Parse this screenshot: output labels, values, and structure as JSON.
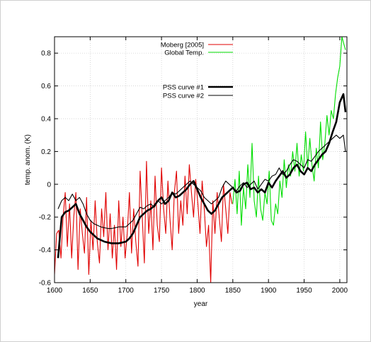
{
  "chart_data": {
    "type": "line",
    "title": "",
    "xlabel": "year",
    "ylabel": "temp. anom.  (K)",
    "xlim": [
      1600,
      2010
    ],
    "ylim": [
      -0.6,
      0.9
    ],
    "x_ticks": [
      1600,
      1650,
      1700,
      1750,
      1800,
      1850,
      1900,
      1950,
      2000
    ],
    "y_ticks": [
      -0.6,
      -0.4,
      -0.2,
      0,
      0.2,
      0.4,
      0.6,
      0.8
    ],
    "x_tick_labels": [
      "1600",
      "1650",
      "1700",
      "1750",
      "1800",
      "1850",
      "1900",
      "1950",
      "2000"
    ],
    "y_tick_labels": [
      "-0.6",
      "-0.4",
      "-0.2",
      "0",
      "0.2",
      "0.4",
      "0.6",
      "0.8"
    ],
    "grid": true,
    "legend_position": "top-center",
    "legend": [
      "Moberg [2005]",
      "Global Temp.",
      "PSS curve #1",
      "PSS curve #2"
    ],
    "series": [
      {
        "name": "Moberg [2005]",
        "color": "#e00000",
        "style": "thin",
        "x": [
          1600,
          1603,
          1606,
          1609,
          1612,
          1615,
          1618,
          1621,
          1624,
          1627,
          1630,
          1633,
          1636,
          1639,
          1642,
          1645,
          1648,
          1651,
          1654,
          1657,
          1660,
          1663,
          1666,
          1669,
          1672,
          1675,
          1678,
          1681,
          1684,
          1687,
          1690,
          1693,
          1696,
          1699,
          1702,
          1705,
          1708,
          1711,
          1714,
          1717,
          1720,
          1723,
          1726,
          1729,
          1732,
          1735,
          1738,
          1741,
          1744,
          1747,
          1750,
          1753,
          1756,
          1759,
          1762,
          1765,
          1768,
          1771,
          1774,
          1777,
          1780,
          1783,
          1786,
          1789,
          1792,
          1795,
          1798,
          1801,
          1804,
          1807,
          1810,
          1813,
          1816,
          1819,
          1822,
          1825,
          1828,
          1831,
          1834,
          1837,
          1840,
          1843,
          1846,
          1849
        ],
        "y": [
          -0.55,
          -0.3,
          -0.28,
          -0.45,
          -0.2,
          -0.05,
          -0.38,
          -0.12,
          -0.45,
          -0.2,
          -0.05,
          -0.52,
          -0.15,
          -0.3,
          -0.42,
          -0.08,
          -0.55,
          -0.22,
          -0.4,
          -0.1,
          -0.35,
          -0.48,
          -0.15,
          -0.32,
          -0.05,
          -0.4,
          -0.18,
          -0.45,
          -0.25,
          -0.52,
          -0.1,
          -0.38,
          -0.2,
          -0.45,
          -0.3,
          -0.05,
          -0.42,
          -0.15,
          -0.35,
          -0.5,
          0.08,
          -0.2,
          -0.48,
          0.14,
          -0.3,
          -0.1,
          -0.4,
          0.05,
          -0.25,
          -0.35,
          0.1,
          -0.15,
          -0.3,
          0.02,
          -0.22,
          -0.4,
          -0.05,
          0.08,
          -0.3,
          -0.1,
          -0.25,
          0.05,
          -0.18,
          0.12,
          -0.05,
          -0.2,
          0.03,
          -0.12,
          -0.3,
          0.02,
          -0.15,
          -0.38,
          -0.25,
          -0.6,
          -0.1,
          -0.3,
          -0.05,
          -0.2,
          -0.35,
          0.0,
          -0.15,
          -0.3,
          -0.05,
          -0.12
        ]
      },
      {
        "name": "Global Temp.",
        "color": "#00dd00",
        "style": "thin",
        "x": [
          1850,
          1853,
          1856,
          1859,
          1862,
          1865,
          1868,
          1871,
          1874,
          1877,
          1880,
          1883,
          1886,
          1889,
          1892,
          1895,
          1898,
          1901,
          1904,
          1907,
          1910,
          1913,
          1916,
          1919,
          1922,
          1925,
          1928,
          1931,
          1934,
          1937,
          1940,
          1943,
          1946,
          1949,
          1952,
          1955,
          1958,
          1961,
          1964,
          1967,
          1970,
          1973,
          1976,
          1979,
          1982,
          1985,
          1988,
          1991,
          1994,
          1997,
          2000,
          2003,
          2006,
          2008
        ],
        "y": [
          -0.12,
          0.03,
          -0.18,
          0.08,
          -0.25,
          -0.02,
          -0.15,
          0.12,
          -0.08,
          0.25,
          -0.1,
          -0.2,
          0.05,
          -0.15,
          -0.22,
          -0.05,
          -0.12,
          0.08,
          -0.22,
          -0.25,
          -0.12,
          -0.18,
          0.02,
          -0.08,
          0.15,
          -0.02,
          0.12,
          0.05,
          0.2,
          0.08,
          0.25,
          0.05,
          0.18,
          0.08,
          0.32,
          0.1,
          0.28,
          0.12,
          0.02,
          0.22,
          0.1,
          0.38,
          0.15,
          0.25,
          0.42,
          0.3,
          0.45,
          0.4,
          0.55,
          0.65,
          0.72,
          0.9,
          0.85,
          0.82
        ]
      },
      {
        "name": "PSS curve #1",
        "color": "#000000",
        "style": "thick",
        "x": [
          1605,
          1610,
          1615,
          1620,
          1625,
          1630,
          1635,
          1640,
          1645,
          1650,
          1655,
          1660,
          1665,
          1670,
          1675,
          1680,
          1685,
          1690,
          1695,
          1700,
          1705,
          1710,
          1715,
          1720,
          1725,
          1730,
          1735,
          1740,
          1745,
          1750,
          1755,
          1760,
          1765,
          1770,
          1775,
          1780,
          1785,
          1790,
          1795,
          1800,
          1805,
          1810,
          1815,
          1820,
          1825,
          1830,
          1835,
          1840,
          1845,
          1850,
          1855,
          1860,
          1865,
          1870,
          1875,
          1880,
          1885,
          1890,
          1895,
          1900,
          1905,
          1910,
          1915,
          1920,
          1925,
          1930,
          1935,
          1940,
          1945,
          1950,
          1955,
          1960,
          1965,
          1970,
          1975,
          1980,
          1985,
          1990,
          1995,
          2000,
          2005,
          2008
        ],
        "y": [
          -0.45,
          -0.2,
          -0.17,
          -0.16,
          -0.14,
          -0.12,
          -0.18,
          -0.22,
          -0.26,
          -0.29,
          -0.31,
          -0.33,
          -0.34,
          -0.35,
          -0.355,
          -0.36,
          -0.36,
          -0.36,
          -0.355,
          -0.35,
          -0.33,
          -0.3,
          -0.25,
          -0.2,
          -0.18,
          -0.16,
          -0.15,
          -0.13,
          -0.1,
          -0.08,
          -0.12,
          -0.1,
          -0.05,
          -0.08,
          -0.07,
          -0.05,
          -0.03,
          0.0,
          0.02,
          -0.03,
          -0.08,
          -0.12,
          -0.16,
          -0.18,
          -0.16,
          -0.12,
          -0.08,
          -0.06,
          -0.04,
          -0.02,
          -0.05,
          -0.04,
          0.0,
          0.01,
          -0.03,
          -0.02,
          -0.05,
          -0.03,
          -0.05,
          0.01,
          -0.02,
          0.02,
          0.05,
          0.08,
          0.04,
          0.06,
          0.1,
          0.12,
          0.08,
          0.06,
          0.1,
          0.08,
          0.12,
          0.15,
          0.18,
          0.2,
          0.25,
          0.32,
          0.38,
          0.5,
          0.55,
          0.44
        ]
      },
      {
        "name": "PSS curve #2",
        "color": "#000000",
        "style": "thin",
        "x": [
          1605,
          1610,
          1615,
          1620,
          1625,
          1630,
          1635,
          1640,
          1645,
          1650,
          1655,
          1660,
          1665,
          1670,
          1675,
          1680,
          1685,
          1690,
          1695,
          1700,
          1705,
          1710,
          1715,
          1720,
          1725,
          1730,
          1735,
          1740,
          1745,
          1750,
          1755,
          1760,
          1765,
          1770,
          1775,
          1780,
          1785,
          1790,
          1795,
          1800,
          1805,
          1810,
          1815,
          1820,
          1825,
          1830,
          1835,
          1840,
          1845,
          1850,
          1855,
          1860,
          1865,
          1870,
          1875,
          1880,
          1885,
          1890,
          1895,
          1900,
          1905,
          1910,
          1915,
          1920,
          1925,
          1930,
          1935,
          1940,
          1945,
          1950,
          1955,
          1960,
          1965,
          1970,
          1975,
          1980,
          1985,
          1990,
          1995,
          2000,
          2005,
          2008
        ],
        "y": [
          -0.15,
          -0.1,
          -0.08,
          -0.1,
          -0.06,
          -0.1,
          -0.08,
          -0.12,
          -0.18,
          -0.22,
          -0.24,
          -0.25,
          -0.26,
          -0.265,
          -0.27,
          -0.27,
          -0.265,
          -0.26,
          -0.26,
          -0.26,
          -0.24,
          -0.22,
          -0.18,
          -0.14,
          -0.15,
          -0.13,
          -0.12,
          -0.14,
          -0.1,
          -0.12,
          -0.1,
          -0.08,
          -0.05,
          -0.06,
          -0.04,
          -0.02,
          0.0,
          0.02,
          0.0,
          -0.02,
          -0.04,
          -0.08,
          -0.1,
          -0.12,
          -0.1,
          -0.08,
          -0.02,
          0.02,
          0.0,
          -0.02,
          -0.04,
          -0.01,
          0.01,
          -0.02,
          0.0,
          0.02,
          -0.03,
          0.0,
          0.03,
          0.02,
          0.05,
          0.06,
          0.1,
          0.06,
          0.08,
          0.12,
          0.15,
          0.14,
          0.12,
          0.1,
          0.15,
          0.14,
          0.17,
          0.2,
          0.22,
          0.24,
          0.26,
          0.28,
          0.3,
          0.28,
          0.3,
          0.2
        ]
      }
    ]
  }
}
